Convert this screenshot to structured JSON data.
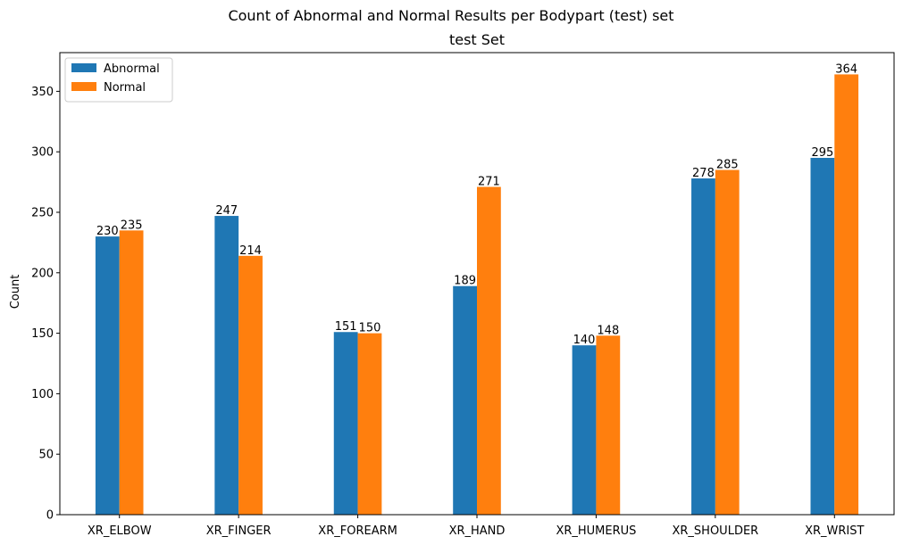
{
  "chart_data": {
    "type": "bar",
    "suptitle": "Count of Abnormal and Normal Results per Bodypart (test) set",
    "title": "test Set",
    "xlabel": "",
    "ylabel": "Count",
    "categories": [
      "XR_ELBOW",
      "XR_FINGER",
      "XR_FOREARM",
      "XR_HAND",
      "XR_HUMERUS",
      "XR_SHOULDER",
      "XR_WRIST"
    ],
    "series": [
      {
        "name": "Abnormal",
        "color": "#1f77b4",
        "values": [
          230,
          247,
          151,
          189,
          140,
          278,
          295
        ]
      },
      {
        "name": "Normal",
        "color": "#ff7f0e",
        "values": [
          235,
          214,
          150,
          271,
          148,
          285,
          364
        ]
      }
    ],
    "ylim": [
      0,
      382
    ],
    "yticks": [
      0,
      50,
      100,
      150,
      200,
      250,
      300,
      350
    ],
    "legend": "top-left",
    "grid": false
  }
}
